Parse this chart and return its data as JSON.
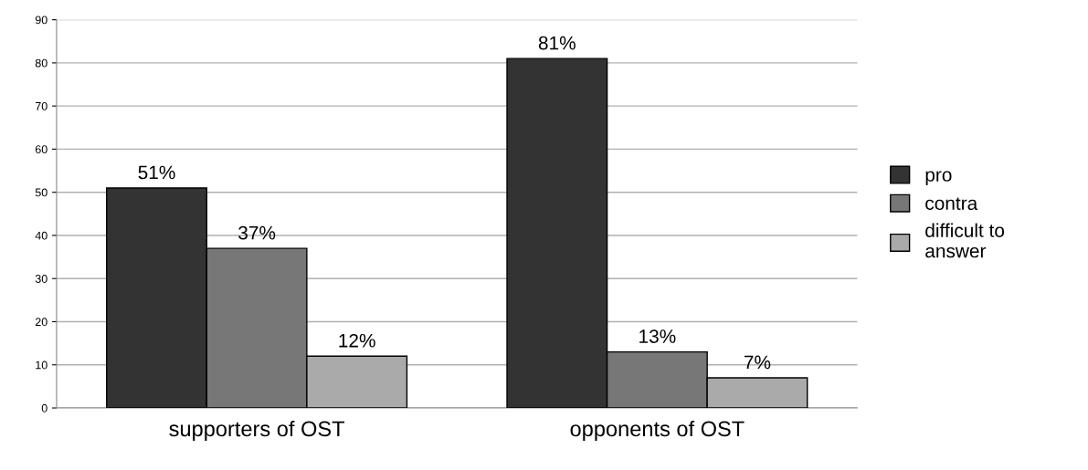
{
  "chart_data": {
    "type": "bar",
    "categories": [
      "supporters of OST",
      "opponents of OST"
    ],
    "series": [
      {
        "name": "pro",
        "color": "#333333",
        "values": [
          51,
          81
        ],
        "value_labels": [
          "51%",
          "81%"
        ]
      },
      {
        "name": "contra",
        "color": "#777777",
        "values": [
          37,
          13
        ],
        "value_labels": [
          "37%",
          "13%"
        ]
      },
      {
        "name": "difficult to\nanswer",
        "color": "#aaaaaa",
        "values": [
          12,
          7
        ],
        "value_labels": [
          "12%",
          "7%"
        ]
      }
    ],
    "ylim": [
      0,
      90
    ],
    "yticks": [
      0,
      10,
      20,
      30,
      40,
      50,
      60,
      70,
      80,
      90
    ],
    "grid": "y",
    "legend": "right"
  }
}
